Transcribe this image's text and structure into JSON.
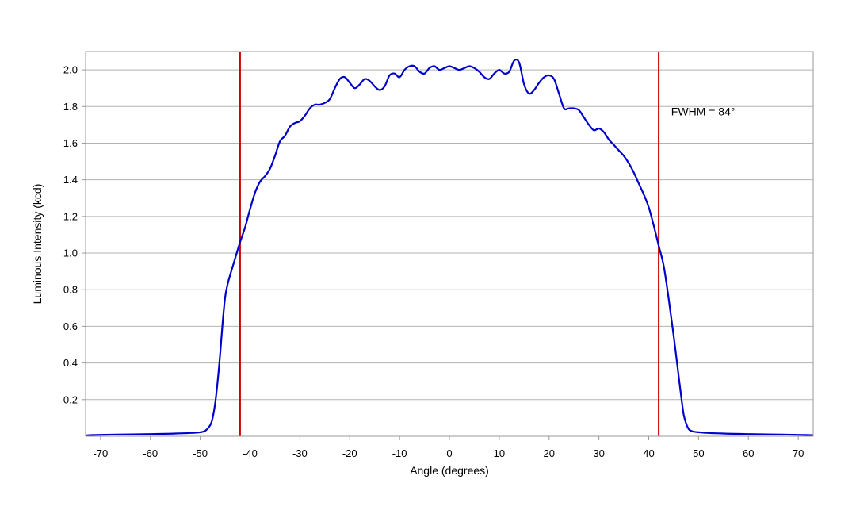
{
  "chart_data": {
    "type": "line",
    "title": "",
    "xlabel": "Angle (degrees)",
    "ylabel": "Luminous Intensity (kcd)",
    "xlim": [
      -73,
      73
    ],
    "ylim": [
      0,
      2.1
    ],
    "x_ticks": [
      -70,
      -60,
      -50,
      -40,
      -30,
      -20,
      -10,
      0,
      10,
      20,
      30,
      40,
      50,
      60,
      70
    ],
    "y_ticks": [
      0.2,
      0.4,
      0.6,
      0.8,
      1.0,
      1.2,
      1.4,
      1.6,
      1.8,
      2.0
    ],
    "x_tick_labels": [
      "-70",
      "-60",
      "-50",
      "-40",
      "-30",
      "-20",
      "-10",
      "0",
      "10",
      "20",
      "30",
      "40",
      "50",
      "60",
      "70"
    ],
    "y_tick_labels": [
      "0.2",
      "0.4",
      "0.6",
      "0.8",
      "1.0",
      "1.2",
      "1.4",
      "1.6",
      "1.8",
      "2.0"
    ],
    "grid": "horizontal",
    "legend": "none",
    "series": [
      {
        "color": "#0000cc",
        "x": [
          -73,
          -70,
          -65,
          -60,
          -55,
          -52,
          -50,
          -49,
          -48,
          -47.5,
          -47,
          -46.5,
          -46,
          -45.5,
          -45,
          -44.5,
          -44,
          -43,
          -42,
          -41,
          -40,
          -39,
          -38,
          -37,
          -36,
          -35,
          -34,
          -33,
          -32,
          -31,
          -30,
          -29,
          -28,
          -27,
          -26,
          -25,
          -24,
          -23,
          -22,
          -21,
          -20,
          -19,
          -18,
          -17,
          -16,
          -15,
          -14,
          -13,
          -12,
          -11,
          -10,
          -9,
          -8,
          -7,
          -6,
          -5,
          -4,
          -3,
          -2,
          -1,
          0,
          1,
          2,
          3,
          4,
          5,
          6,
          7,
          8,
          9,
          10,
          11,
          12,
          13,
          14,
          15,
          16,
          17,
          18,
          19,
          20,
          21,
          22,
          23,
          24,
          25,
          26,
          27,
          28,
          29,
          30,
          31,
          32,
          33,
          34,
          35,
          36,
          37,
          38,
          39,
          40,
          41,
          42,
          43,
          44,
          45,
          46,
          46.5,
          47,
          47.5,
          48,
          48.5,
          49,
          50,
          52,
          55,
          60,
          65,
          70,
          73
        ],
        "y": [
          0.005,
          0.008,
          0.01,
          0.012,
          0.015,
          0.018,
          0.022,
          0.03,
          0.06,
          0.1,
          0.18,
          0.3,
          0.45,
          0.62,
          0.76,
          0.83,
          0.88,
          0.97,
          1.06,
          1.14,
          1.24,
          1.33,
          1.39,
          1.42,
          1.46,
          1.53,
          1.61,
          1.64,
          1.69,
          1.71,
          1.72,
          1.75,
          1.79,
          1.81,
          1.81,
          1.82,
          1.84,
          1.9,
          1.95,
          1.96,
          1.93,
          1.9,
          1.92,
          1.95,
          1.94,
          1.91,
          1.89,
          1.91,
          1.97,
          1.98,
          1.96,
          2.0,
          2.02,
          2.02,
          1.99,
          1.98,
          2.01,
          2.02,
          2.0,
          2.01,
          2.02,
          2.01,
          2.0,
          2.01,
          2.02,
          2.01,
          1.99,
          1.96,
          1.95,
          1.98,
          2.0,
          1.98,
          1.99,
          2.05,
          2.04,
          1.92,
          1.87,
          1.89,
          1.93,
          1.96,
          1.97,
          1.95,
          1.87,
          1.79,
          1.79,
          1.79,
          1.78,
          1.74,
          1.7,
          1.67,
          1.68,
          1.66,
          1.62,
          1.59,
          1.56,
          1.53,
          1.49,
          1.44,
          1.38,
          1.32,
          1.25,
          1.15,
          1.04,
          0.93,
          0.75,
          0.55,
          0.33,
          0.22,
          0.12,
          0.07,
          0.04,
          0.03,
          0.025,
          0.022,
          0.018,
          0.015,
          0.012,
          0.01,
          0.008,
          0.006
        ]
      }
    ],
    "vertical_lines": [
      {
        "x": -42,
        "color": "#cc0000"
      },
      {
        "x": 42,
        "color": "#cc0000"
      }
    ],
    "annotations": [
      {
        "text": "FWHM = 84°",
        "x": 44.5,
        "y": 1.69
      }
    ]
  }
}
